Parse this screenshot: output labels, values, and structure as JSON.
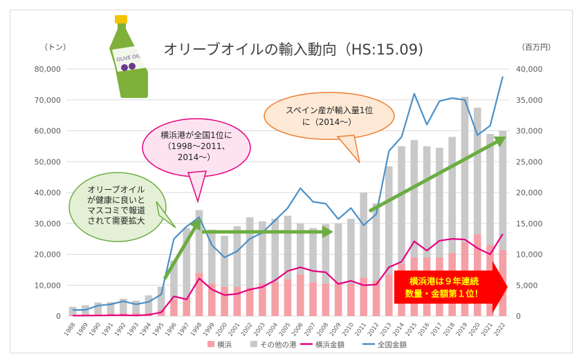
{
  "chart_data": {
    "type": "bar",
    "title": "オリーブオイルの輸入動向（HS:15.09)",
    "y_left_unit": "（トン）",
    "y_right_unit": "（百万円）",
    "ylim_left": [
      0,
      80000
    ],
    "ylim_right": [
      0,
      40000
    ],
    "yticks_left": [
      "0",
      "10,000",
      "20,000",
      "30,000",
      "40,000",
      "50,000",
      "60,000",
      "70,000",
      "80,000"
    ],
    "yticks_right": [
      "0",
      "5,000",
      "10,000",
      "15,000",
      "20,000",
      "25,000",
      "30,000",
      "35,000",
      "40,000"
    ],
    "categories": [
      "1988",
      "1989",
      "1990",
      "1991",
      "1992",
      "1993",
      "1994",
      "1995",
      "1996",
      "1997",
      "1998",
      "1999",
      "2000",
      "2001",
      "2002",
      "2003",
      "2004",
      "2005",
      "2006",
      "2007",
      "2008",
      "2009",
      "2010",
      "2011",
      "2012",
      "2013",
      "2014",
      "2015",
      "2016",
      "2017",
      "2018",
      "2019",
      "2020",
      "2021",
      "2022"
    ],
    "grid": true,
    "legend_position": "bottom",
    "series": [
      {
        "name": "横浜",
        "kind": "bar",
        "axis": "left",
        "color": "#f4a0a6",
        "values": [
          500,
          600,
          700,
          800,
          900,
          900,
          1000,
          2000,
          5500,
          6000,
          14000,
          10500,
          9500,
          9500,
          9200,
          10500,
          11000,
          12000,
          13500,
          11000,
          10500,
          11000,
          10500,
          12500,
          11500,
          13500,
          17000,
          19000,
          19000,
          19000,
          20500,
          24000,
          26500,
          23000,
          21500
        ]
      },
      {
        "name": "その他の港",
        "kind": "bar",
        "axis": "left",
        "color": "#c9c9c9",
        "values": [
          2500,
          2900,
          3700,
          3700,
          4700,
          4100,
          5700,
          7500,
          12500,
          22500,
          20300,
          17500,
          16500,
          19600,
          22800,
          20200,
          20500,
          20500,
          16500,
          17500,
          19300,
          19000,
          21000,
          27500,
          25000,
          35000,
          38000,
          38000,
          36000,
          35500,
          37500,
          47000,
          41000,
          36000,
          38500
        ]
      },
      {
        "name": "横浜金額",
        "kind": "line",
        "axis": "right",
        "color": "#e4007f",
        "values": [
          80,
          80,
          90,
          120,
          150,
          100,
          200,
          600,
          3200,
          2700,
          6100,
          4300,
          3400,
          3600,
          4300,
          4700,
          5800,
          7300,
          7900,
          7300,
          7100,
          5200,
          5700,
          5000,
          5100,
          7900,
          8800,
          12100,
          10600,
          12200,
          12500,
          12400,
          11000,
          10000,
          13300
        ]
      },
      {
        "name": "全国金額",
        "kind": "line",
        "axis": "right",
        "color": "#4a90c8",
        "values": [
          1000,
          1000,
          1700,
          1900,
          2400,
          1900,
          2300,
          3500,
          12500,
          14500,
          16000,
          11500,
          9500,
          10500,
          12500,
          13500,
          15500,
          17500,
          20700,
          18500,
          18200,
          15700,
          17500,
          14700,
          16500,
          26700,
          29000,
          36000,
          31000,
          34800,
          35300,
          35000,
          29300,
          30800,
          38800
        ]
      }
    ],
    "annotations": [
      "オリーブオイル\nが健康に良いと\nマスコミで報道\nされて需要拡大",
      "横浜港が全国1位に\n（1998〜2011、\n2014〜）",
      "スペイン産が輸入量1位\nに（2014〜）",
      "横浜港は９年連続\n数量・金額第１位！"
    ],
    "bottle_label": "OLIVE OIL",
    "colors": {
      "green_arrow": "#6cad42",
      "bubble_green_fill": "#e3f0d6",
      "bubble_green_stroke": "#70ad47",
      "bubble_pink_fill": "#fde3ef",
      "bubble_pink_stroke": "#e4007f",
      "bubble_orange_fill": "#fde9d6",
      "bubble_orange_stroke": "#ed7d31",
      "callout_fill": "#ff0000",
      "callout_text": "#ffff00"
    }
  }
}
